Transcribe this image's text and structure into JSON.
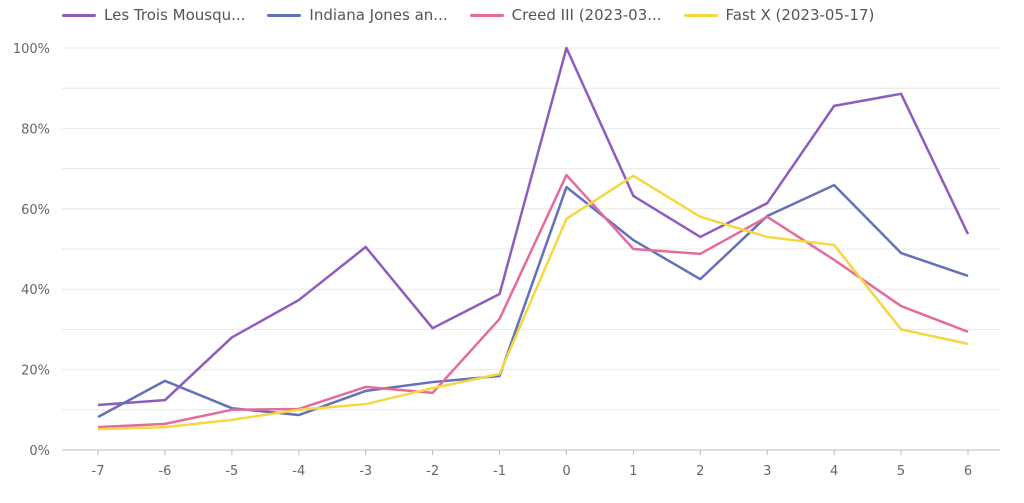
{
  "chart_data": {
    "type": "line",
    "title": "",
    "xlabel": "",
    "ylabel": "",
    "x": [
      -7,
      -6,
      -5,
      -4,
      -3,
      -2,
      -1,
      0,
      1,
      2,
      3,
      4,
      5,
      6
    ],
    "ylim": [
      0,
      100
    ],
    "yticks": [
      0,
      20,
      40,
      60,
      80,
      100
    ],
    "ytick_labels": [
      "0%",
      "20%",
      "40%",
      "60%",
      "80%",
      "100%"
    ],
    "grid": true,
    "legend_position": "top",
    "series": [
      {
        "name": "Les Trois Mousqu...",
        "color": "#8e5cc0",
        "values": [
          11.2,
          12.4,
          28,
          37.3,
          50.5,
          30.3,
          38.8,
          100,
          63.2,
          53,
          61.4,
          85.6,
          88.6,
          53.7
        ]
      },
      {
        "name": "Indiana Jones an...",
        "color": "#6470b8",
        "values": [
          8.2,
          17.2,
          10.4,
          8.7,
          14.7,
          16.9,
          18.4,
          65.4,
          52.2,
          42.5,
          58.2,
          65.9,
          49,
          43.3
        ]
      },
      {
        "name": "Creed III (2023-03...",
        "color": "#e46c9c",
        "values": [
          5.7,
          6.5,
          10,
          10.2,
          15.7,
          14.2,
          32.6,
          68.4,
          50,
          48.8,
          58,
          47.3,
          35.8,
          29.4
        ]
      },
      {
        "name": "Fast X (2023-05-17)",
        "color": "#f5d742",
        "values": [
          5.2,
          5.7,
          7.5,
          10,
          11.4,
          15.4,
          18.9,
          57.5,
          68.2,
          58,
          53,
          51,
          30,
          26.4
        ]
      }
    ]
  }
}
